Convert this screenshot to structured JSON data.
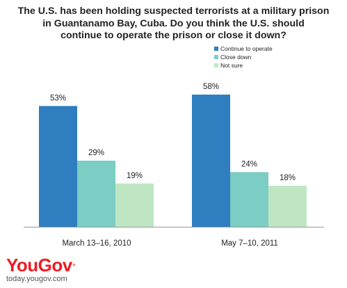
{
  "title_lines": [
    "The U.S. has been holding suspected terrorists at a military prison",
    "in Guantanamo Bay, Cuba. Do you think the U.S. should",
    "continue to operate the prison or close it down?"
  ],
  "brand": {
    "logo": "YouGov",
    "url": "today.yougov.com"
  },
  "colors": {
    "continue": "#2f7ebf",
    "close": "#7ccdc3",
    "not_sure": "#bfe6c3"
  },
  "chart_data": {
    "type": "bar",
    "title": "The U.S. has been holding suspected terrorists at a military prison in Guantanamo Bay, Cuba. Do you think the U.S. should continue to operate the prison or close it down?",
    "categories": [
      "March 13–16, 2010",
      "May 7–10, 2011"
    ],
    "series": [
      {
        "name": "Continue to operate",
        "values": [
          53,
          58
        ],
        "labels": [
          "53%",
          "58%"
        ]
      },
      {
        "name": "Close down",
        "values": [
          29,
          24
        ],
        "labels": [
          "29%",
          "24%"
        ]
      },
      {
        "name": "Not sure",
        "values": [
          19,
          18
        ],
        "labels": [
          "19%",
          "18%"
        ]
      }
    ],
    "ylim": [
      0,
      58
    ],
    "grid": false,
    "legend_position": "top-right",
    "xlabel": "",
    "ylabel": ""
  }
}
